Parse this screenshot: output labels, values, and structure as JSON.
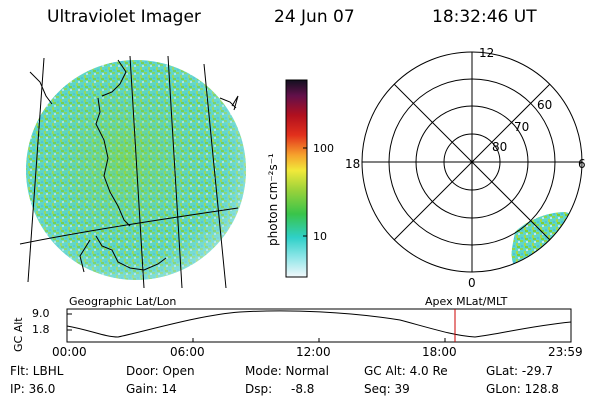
{
  "header": {
    "instrument": "Ultraviolet Imager",
    "date": "24 Jun 07",
    "time": "18:32:46 UT"
  },
  "colorbar": {
    "unit_label": "photon cm⁻²s⁻¹",
    "ticks": [
      "100",
      "10"
    ]
  },
  "polar_plot": {
    "mlt_labels": [
      "12",
      "18",
      "6",
      "0"
    ],
    "lat_labels": [
      "60",
      "70",
      "80"
    ]
  },
  "timeline": {
    "left_title": "Geographic Lat/Lon",
    "right_title": "Apex MLat/MLT",
    "axis_label": "GC Alt",
    "y_ticks": [
      "9.0",
      "1.8"
    ],
    "x_ticks": [
      "00:00",
      "06:00",
      "12:00",
      "18:00",
      "23:59"
    ],
    "marker_time": "18:32:46",
    "marker_color": "#cc0000"
  },
  "info": {
    "flt": "Flt: LBHL",
    "ip": "IP: 36.0",
    "door": "Door: Open",
    "gain": "Gain: 14",
    "mode": "Mode: Normal",
    "dsp_label": "Dsp:",
    "dsp_value": "-8.8",
    "gc_alt": "GC Alt: 4.0 Re",
    "seq": "Seq: 39",
    "glat": "GLat: -29.7",
    "glon": "GLon: 128.8"
  },
  "colors": {
    "aurora_green": "#7ccf38",
    "aurora_cyan": "#3fe0d6",
    "lines": "#000000"
  }
}
